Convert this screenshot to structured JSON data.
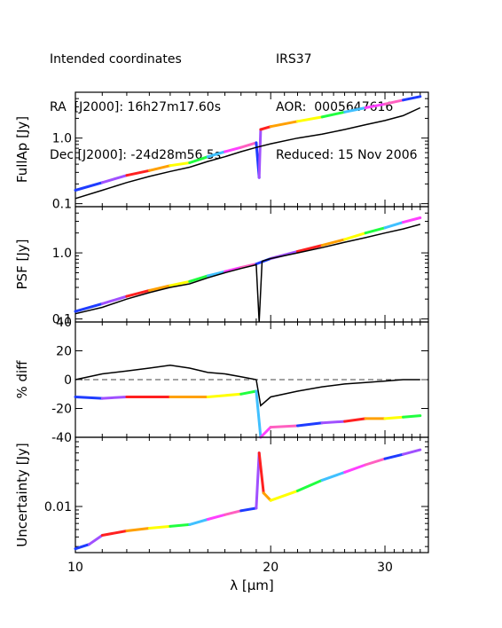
{
  "header": {
    "left": [
      "Intended coordinates",
      "RA  [J2000]: 16h27m17.60s",
      "Dec [J2000]: -24d28m56.5s"
    ],
    "right": [
      "IRS37",
      "AOR:  0005647616",
      "Reduced: 15 Nov 2006"
    ]
  },
  "chart_data": {
    "type": "line",
    "xlabel": "λ [μm]",
    "xscale": "log",
    "xlim": [
      10,
      35
    ],
    "xticks": [
      10,
      20,
      30
    ],
    "xtick_labels": [
      "10",
      "20",
      "30"
    ],
    "segment_colors": [
      "#1e3cff",
      "#a050ff",
      "#ff2020",
      "#ffa000",
      "#ffff00",
      "#20ff40",
      "#40c0ff",
      "#ff40ff",
      "#ff60c0"
    ],
    "panels": [
      {
        "ylabel": "FullAp [Jy]",
        "yscale": "log",
        "ylim": [
          0.09,
          5
        ],
        "yticks": [
          0.1,
          1.0
        ],
        "ytick_labels": [
          "0.1",
          "1.0"
        ],
        "series": [
          {
            "style": "colored-segments",
            "x": [
              10.0,
              11.0,
              12.0,
              13.0,
              14.0,
              15.0,
              16.0,
              17.0,
              18.0,
              19.0,
              19.2,
              19.3,
              20.0,
              22.0,
              24.0,
              26.0,
              28.0,
              30.0,
              32.0,
              34.0
            ],
            "y": [
              0.16,
              0.21,
              0.27,
              0.32,
              0.38,
              0.42,
              0.52,
              0.62,
              0.72,
              0.85,
              0.25,
              1.35,
              1.5,
              1.8,
              2.1,
              2.5,
              2.9,
              3.3,
              3.8,
              4.3
            ]
          },
          {
            "style": "black",
            "x": [
              10.0,
              11.0,
              12.0,
              13.0,
              14.0,
              15.0,
              16.0,
              17.0,
              18.0,
              19.0,
              20.0,
              22.0,
              24.0,
              26.0,
              28.0,
              30.0,
              32.0,
              34.0
            ],
            "y": [
              0.12,
              0.16,
              0.21,
              0.26,
              0.31,
              0.36,
              0.44,
              0.52,
              0.62,
              0.72,
              0.82,
              1.0,
              1.15,
              1.35,
              1.6,
              1.85,
              2.2,
              2.9
            ]
          }
        ]
      },
      {
        "ylabel": "PSF [Jy]",
        "yscale": "log",
        "ylim": [
          0.09,
          5
        ],
        "yticks": [
          0.1,
          1.0
        ],
        "ytick_labels": [
          "0.1",
          "1.0"
        ],
        "series": [
          {
            "style": "colored-segments",
            "x": [
              10.0,
              11.0,
              12.0,
              13.0,
              14.0,
              15.0,
              16.0,
              17.0,
              18.0,
              19.0,
              20.0,
              22.0,
              24.0,
              26.0,
              28.0,
              30.0,
              32.0,
              34.0
            ],
            "y": [
              0.13,
              0.17,
              0.22,
              0.27,
              0.32,
              0.37,
              0.45,
              0.52,
              0.6,
              0.68,
              0.82,
              1.05,
              1.3,
              1.6,
              2.0,
              2.4,
              2.9,
              3.4
            ]
          },
          {
            "style": "black",
            "x": [
              10.0,
              11.0,
              12.0,
              13.0,
              14.0,
              15.0,
              16.0,
              17.0,
              18.0,
              19.0,
              19.2,
              19.4,
              20.0,
              22.0,
              24.0,
              26.0,
              28.0,
              30.0,
              32.0,
              34.0
            ],
            "y": [
              0.12,
              0.15,
              0.2,
              0.25,
              0.3,
              0.34,
              0.42,
              0.5,
              0.58,
              0.66,
              0.05,
              0.75,
              0.82,
              1.0,
              1.2,
              1.45,
              1.7,
              2.0,
              2.3,
              2.7
            ]
          }
        ]
      },
      {
        "ylabel": "% diff",
        "yscale": "linear",
        "ylim": [
          -40,
          40
        ],
        "yticks": [
          -40,
          -20,
          0,
          20,
          40
        ],
        "ytick_labels": [
          "-40",
          "-20",
          "0",
          "20",
          "40"
        ],
        "zero_line": true,
        "series": [
          {
            "style": "colored-segments",
            "x": [
              10.0,
              11.0,
              12.0,
              14.0,
              16.0,
              18.0,
              19.0,
              19.3,
              20.0,
              22.0,
              24.0,
              26.0,
              28.0,
              30.0,
              32.0,
              34.0
            ],
            "y": [
              -12,
              -13,
              -12,
              -12,
              -12,
              -10,
              -8,
              -40,
              -33,
              -32,
              -30,
              -29,
              -27,
              -27,
              -26,
              -25
            ]
          },
          {
            "style": "black",
            "x": [
              10.0,
              11.0,
              12.0,
              13.0,
              14.0,
              15.0,
              16.0,
              17.0,
              18.0,
              19.0,
              19.3,
              20.0,
              22.0,
              24.0,
              26.0,
              28.0,
              30.0,
              32.0,
              34.0
            ],
            "y": [
              0,
              4,
              6,
              8,
              10,
              8,
              5,
              4,
              2,
              0,
              -18,
              -12,
              -8,
              -5,
              -3,
              -2,
              -1,
              0,
              0
            ]
          }
        ]
      },
      {
        "ylabel": "Uncertainty [Jy]",
        "yscale": "log",
        "ylim": [
          0.0025,
          0.08
        ],
        "yticks": [
          0.01
        ],
        "ytick_labels": [
          "0.01"
        ],
        "series": [
          {
            "style": "colored-segments",
            "x": [
              10.0,
              10.5,
              11.0,
              12.0,
              13.0,
              14.0,
              15.0,
              16.0,
              17.0,
              18.0,
              19.0,
              19.2,
              19.5,
              20.0,
              22.0,
              24.0,
              26.0,
              28.0,
              30.0,
              32.0,
              34.0
            ],
            "y": [
              0.0028,
              0.0032,
              0.0042,
              0.0048,
              0.0052,
              0.0055,
              0.0058,
              0.0068,
              0.0078,
              0.0088,
              0.0095,
              0.05,
              0.015,
              0.012,
              0.016,
              0.022,
              0.028,
              0.035,
              0.042,
              0.048,
              0.055
            ]
          }
        ]
      }
    ]
  }
}
